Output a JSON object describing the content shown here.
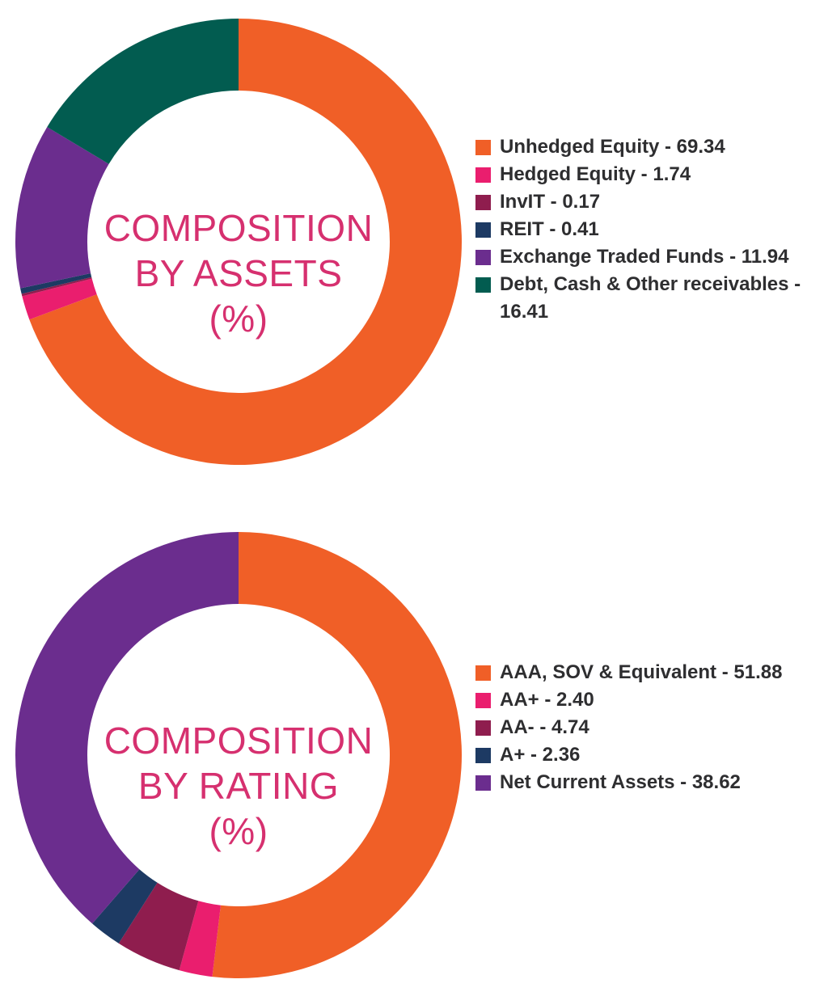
{
  "chart_data": [
    {
      "type": "pie",
      "title_lines": [
        "COMPOSITION",
        "BY ASSETS",
        "(%)"
      ],
      "categories": [
        "Unhedged Equity",
        "Hedged Equity",
        "InvIT",
        "REIT",
        "Exchange Traded Funds",
        "Debt, Cash & Other receivables"
      ],
      "values": [
        69.34,
        1.74,
        0.17,
        0.41,
        11.94,
        16.41
      ],
      "colors": [
        "#f05f27",
        "#ea1e6e",
        "#8f1d4e",
        "#1d3a63",
        "#6b2d8e",
        "#025c50"
      ],
      "legend": [
        {
          "label": "Unhedged Equity - 69.34"
        },
        {
          "label": "Hedged Equity - 1.74"
        },
        {
          "label": "InvIT - 0.17"
        },
        {
          "label": "REIT - 0.41"
        },
        {
          "label": "Exchange Traded Funds - 11.94"
        },
        {
          "label": "Debt, Cash & Other receivables - 16.41"
        }
      ],
      "legend_position": "right",
      "donut": true,
      "start": "top",
      "direction": "clockwise"
    },
    {
      "type": "pie",
      "title_lines": [
        "COMPOSITION",
        "BY RATING",
        "(%)"
      ],
      "categories": [
        "AAA, SOV & Equivalent",
        "AA+",
        "AA-",
        "A+",
        "Net Current Assets"
      ],
      "values": [
        51.88,
        2.4,
        4.74,
        2.36,
        38.62
      ],
      "colors": [
        "#f05f27",
        "#ea1e6e",
        "#8f1d4e",
        "#1d3a63",
        "#6b2d8e"
      ],
      "legend": [
        {
          "label": "AAA, SOV & Equivalent - 51.88"
        },
        {
          "label": "AA+ - 2.40"
        },
        {
          "label": "AA- - 4.74"
        },
        {
          "label": "A+ - 2.36"
        },
        {
          "label": "Net Current Assets - 38.62"
        }
      ],
      "legend_position": "right",
      "donut": true,
      "start": "top",
      "direction": "clockwise"
    }
  ]
}
